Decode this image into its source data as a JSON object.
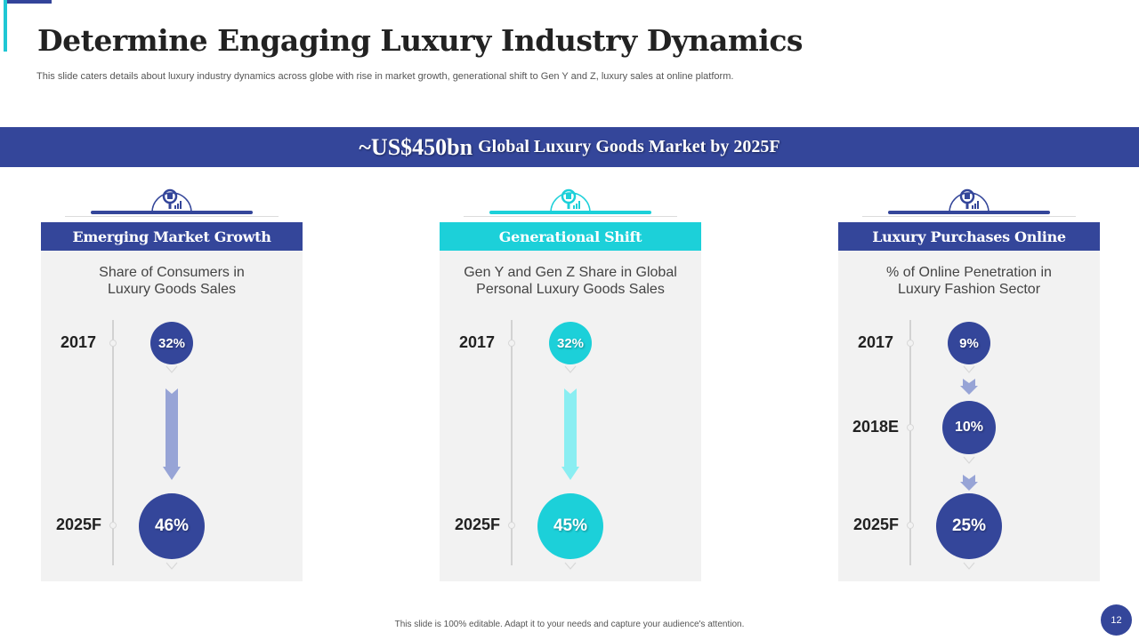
{
  "title": "Determine Engaging Luxury Industry Dynamics",
  "subtitle": "This slide caters details about luxury industry dynamics across globe with rise in market growth, generational shift to Gen Y and Z, luxury sales at online platform.",
  "banner": {
    "highlight": "~US$450bn",
    "text": "Global Luxury Goods Market by 2025F"
  },
  "colors": {
    "navy": "#34469a",
    "cyan": "#1cd0d9",
    "navy_arrow": "#97a4d6",
    "cyan_arrow": "#8aeef2"
  },
  "cards": [
    {
      "header": "Emerging Market Growth",
      "caption_line1": "Share of Consumers in",
      "caption_line2": "Luxury  Goods Sales",
      "year_start": "2017",
      "value_start": "32%",
      "year_end": "2025F",
      "value_end": "46%"
    },
    {
      "header": "Generational Shift",
      "caption_line1": "Gen Y and Gen Z Share in Global",
      "caption_line2": "Personal Luxury  Goods Sales",
      "year_start": "2017",
      "value_start": "32%",
      "year_end": "2025F",
      "value_end": "45%"
    },
    {
      "header": "Luxury Purchases Online",
      "caption_line1": "% of Online Penetration in",
      "caption_line2": "Luxury Fashion Sector",
      "year_start": "2017",
      "value_start": "9%",
      "year_mid": "2018E",
      "value_mid": "10%",
      "year_end": "2025F",
      "value_end": "25%"
    }
  ],
  "icons": {
    "card_icon": "magnifier-chart-icon"
  },
  "footer_note": "This slide is 100% editable.  Adapt it to your needs and capture your audience's attention.",
  "page_number": "12"
}
